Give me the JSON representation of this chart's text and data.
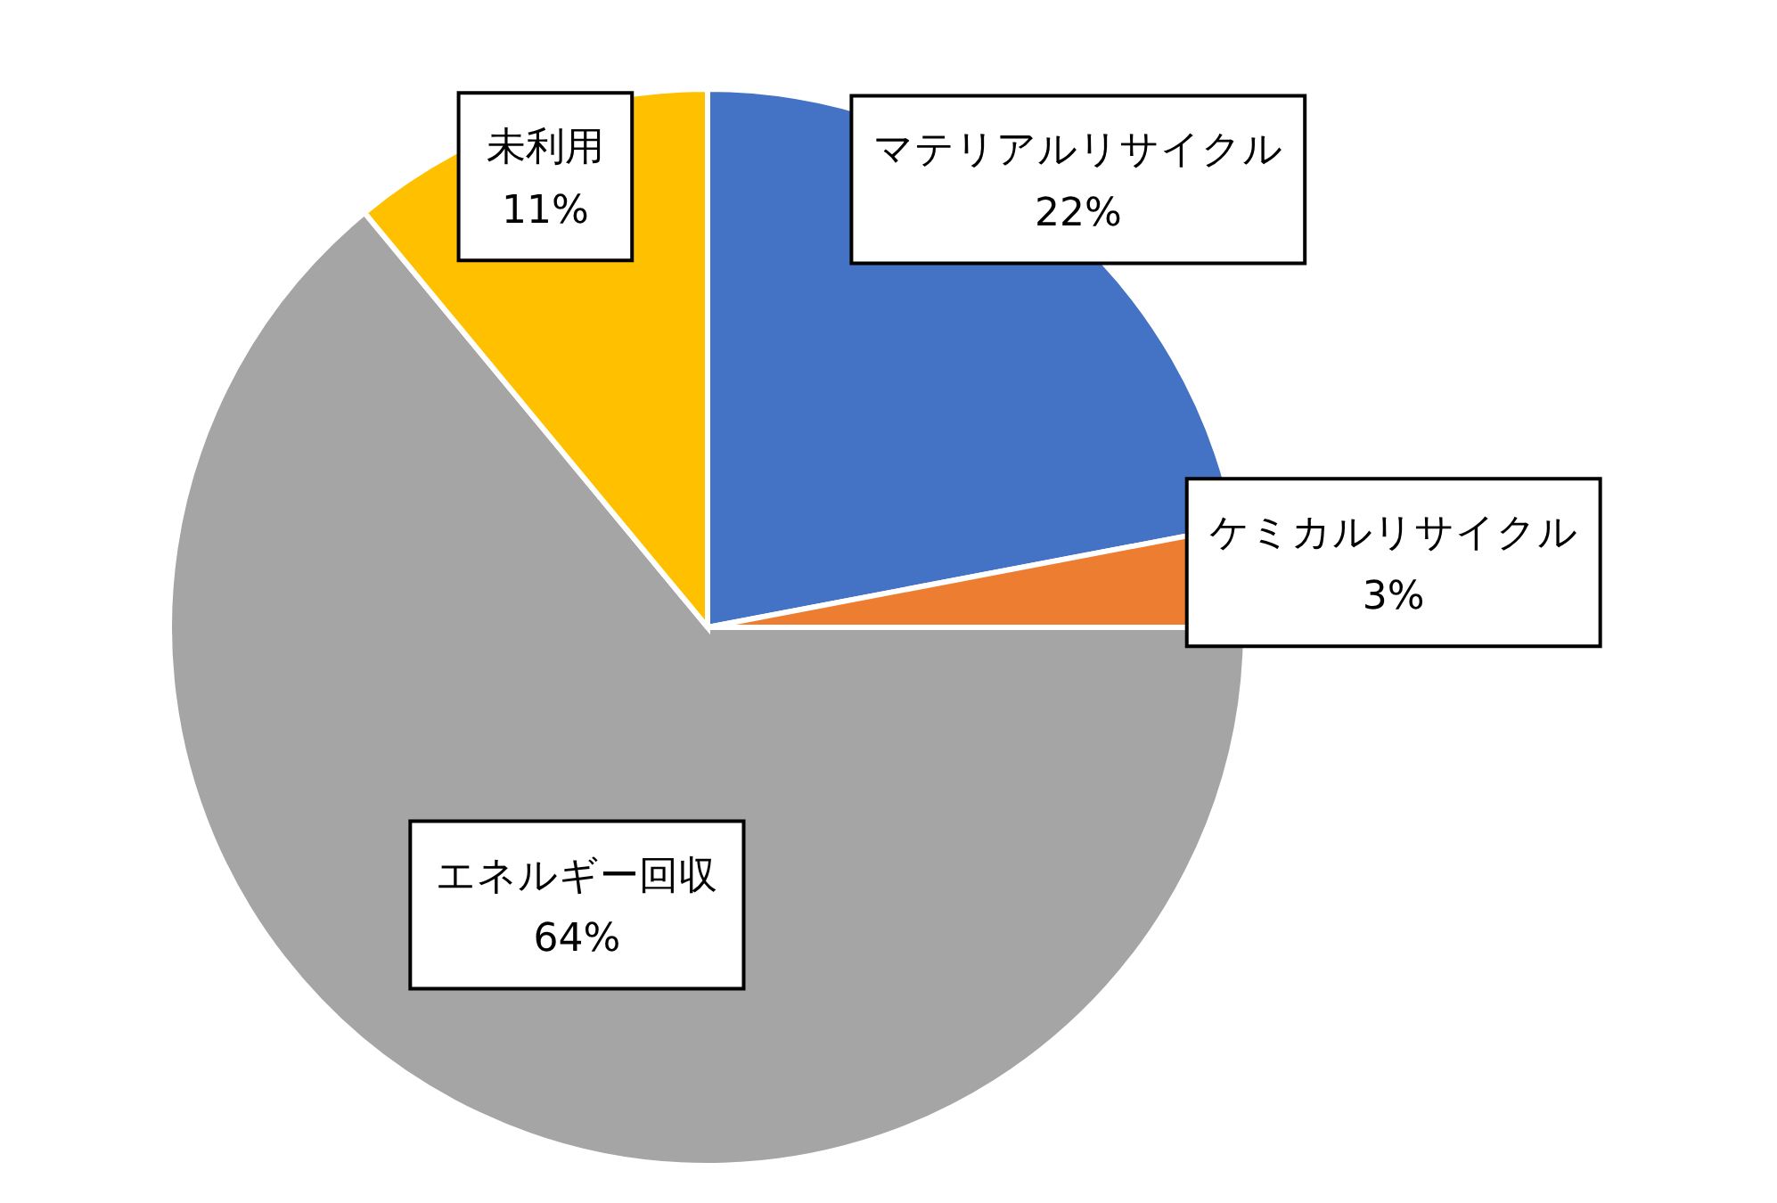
{
  "chart_data": {
    "type": "pie",
    "categories": [
      "マテリアルリサイクル",
      "ケミカルリサイクル",
      "エネルギー回収",
      "未利用"
    ],
    "values": [
      22,
      3,
      64,
      11
    ],
    "value_labels": [
      "22%",
      "3%",
      "64%",
      "11%"
    ],
    "colors": [
      "#4472c4",
      "#ed7d31",
      "#a5a5a5",
      "#ffc000"
    ]
  }
}
